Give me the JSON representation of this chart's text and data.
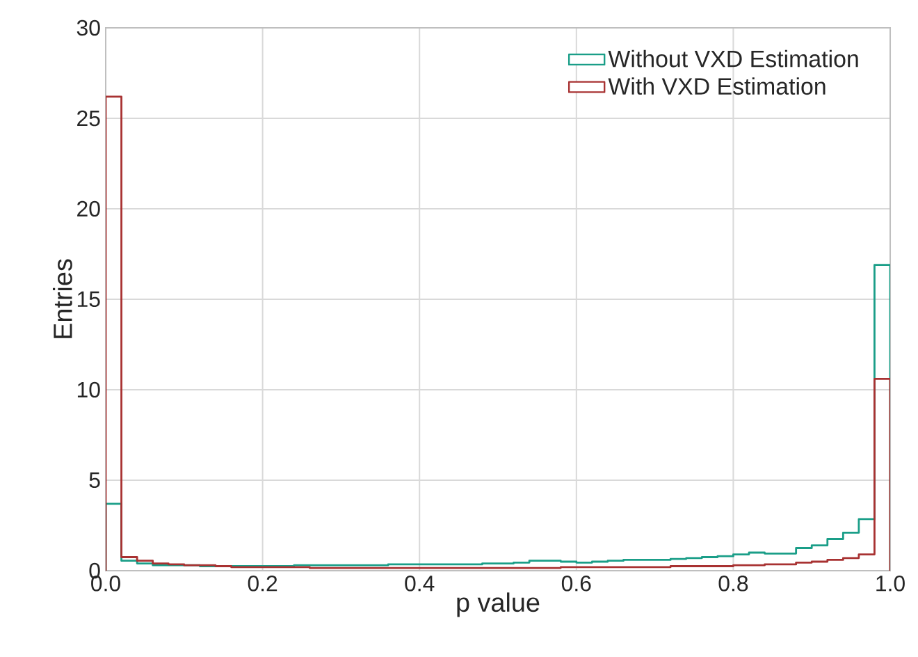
{
  "chart_data": {
    "type": "histogram",
    "xlabel": "p value",
    "ylabel": "Entries",
    "bins": [
      0,
      0.02,
      0.04,
      0.06,
      0.08,
      0.1,
      0.12,
      0.14,
      0.16,
      0.18,
      0.2,
      0.22,
      0.24,
      0.26,
      0.28,
      0.3,
      0.32,
      0.34,
      0.36,
      0.38,
      0.4,
      0.42,
      0.44,
      0.46,
      0.48,
      0.5,
      0.52,
      0.54,
      0.56,
      0.58,
      0.6,
      0.62,
      0.64,
      0.66,
      0.68,
      0.7,
      0.72,
      0.74,
      0.76,
      0.78,
      0.8,
      0.82,
      0.84,
      0.86,
      0.88,
      0.9,
      0.92,
      0.94,
      0.96,
      0.98,
      1.0
    ],
    "series": [
      {
        "name": "Without VXD Estimation",
        "color": "#1a9e88",
        "values": [
          3.7,
          0.55,
          0.4,
          0.3,
          0.3,
          0.3,
          0.25,
          0.25,
          0.25,
          0.25,
          0.25,
          0.25,
          0.3,
          0.3,
          0.3,
          0.3,
          0.3,
          0.3,
          0.35,
          0.35,
          0.35,
          0.35,
          0.35,
          0.35,
          0.4,
          0.4,
          0.45,
          0.55,
          0.55,
          0.5,
          0.45,
          0.5,
          0.55,
          0.6,
          0.6,
          0.6,
          0.65,
          0.7,
          0.75,
          0.8,
          0.9,
          1.0,
          0.95,
          0.95,
          1.25,
          1.4,
          1.75,
          2.1,
          2.85,
          16.9
        ]
      },
      {
        "name": "With VXD Estimation",
        "color": "#a83232",
        "values": [
          26.2,
          0.75,
          0.55,
          0.4,
          0.35,
          0.3,
          0.3,
          0.25,
          0.2,
          0.2,
          0.2,
          0.2,
          0.2,
          0.15,
          0.15,
          0.15,
          0.15,
          0.15,
          0.15,
          0.15,
          0.15,
          0.15,
          0.15,
          0.15,
          0.15,
          0.15,
          0.15,
          0.15,
          0.15,
          0.2,
          0.2,
          0.2,
          0.2,
          0.2,
          0.2,
          0.2,
          0.25,
          0.25,
          0.25,
          0.25,
          0.3,
          0.3,
          0.35,
          0.35,
          0.45,
          0.5,
          0.6,
          0.7,
          0.9,
          10.6
        ]
      }
    ],
    "xlim": [
      0,
      1
    ],
    "ylim": [
      0,
      30
    ],
    "xticks": [
      {
        "value": 0,
        "label": "0.0"
      },
      {
        "value": 0.2,
        "label": "0.2"
      },
      {
        "value": 0.4,
        "label": "0.4"
      },
      {
        "value": 0.6,
        "label": "0.6"
      },
      {
        "value": 0.8,
        "label": "0.8"
      },
      {
        "value": 1.0,
        "label": "1.0"
      }
    ],
    "yticks": [
      0,
      5,
      10,
      15,
      20,
      25,
      30
    ],
    "grid": true,
    "legend": "top right"
  }
}
